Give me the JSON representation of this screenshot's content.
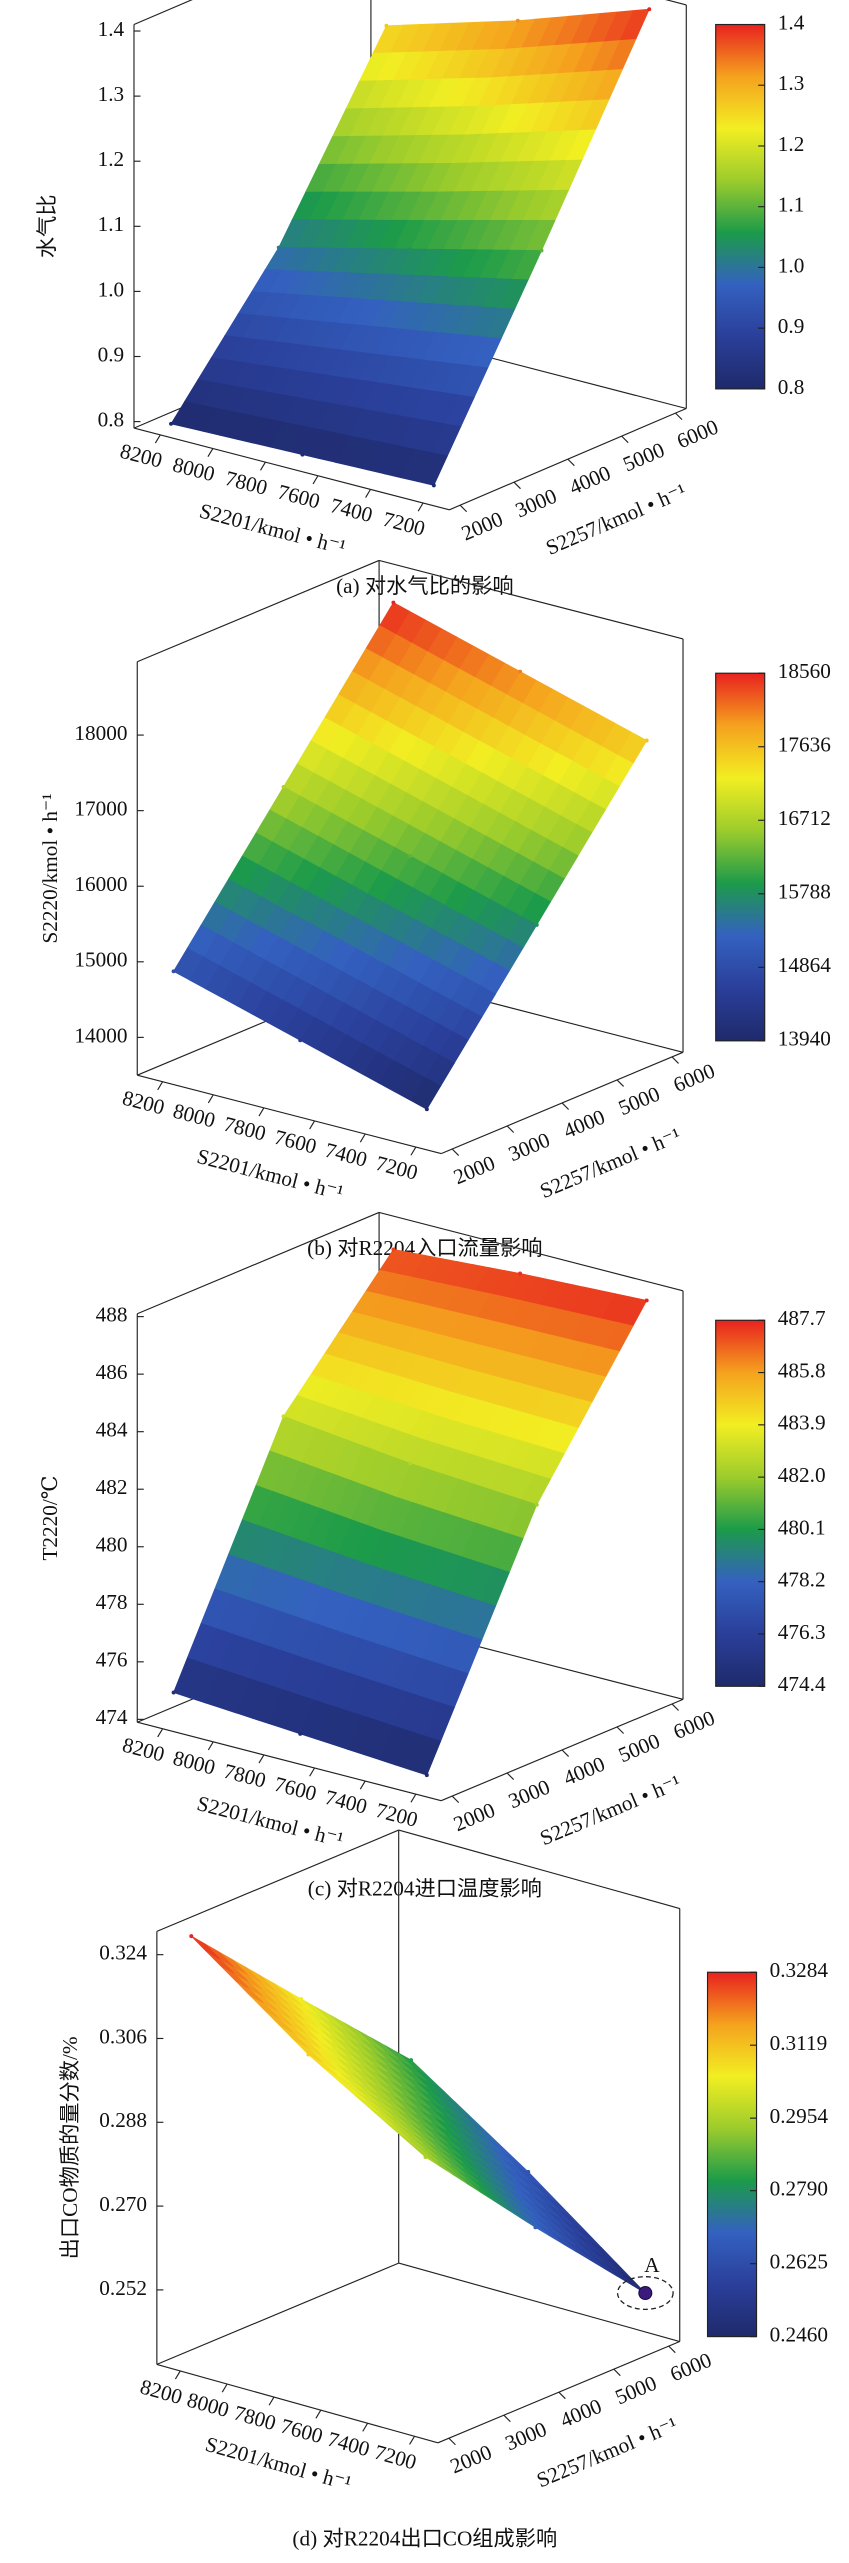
{
  "chart_data": [
    {
      "type": "surface",
      "caption": "(a) 对水气比的影响",
      "xlabel": "S2201/kmol • h⁻¹",
      "ylabel": "S2257/kmol • h⁻¹",
      "zlabel": "水气比",
      "x": [
        7200,
        7700,
        8200
      ],
      "y": [
        2000,
        4000,
        6000
      ],
      "z": [
        [
          0.81,
          0.805,
          0.8
        ],
        [
          1.1,
          1.05,
          1.0
        ],
        [
          1.4,
          1.33,
          1.27
        ]
      ],
      "xlim": [
        7100,
        8300
      ],
      "xticks": [
        8200,
        8000,
        7800,
        7600,
        7400,
        7200
      ],
      "ylim": [
        1800,
        6200
      ],
      "yticks": [
        2000,
        3000,
        4000,
        5000,
        6000
      ],
      "zlim": [
        0.79,
        1.41
      ],
      "zticks": [
        0.8,
        0.9,
        {
          "value": 1,
          "label": "1.0"
        },
        1.1,
        1.2,
        1.3,
        1.4
      ],
      "clim": [
        0.8,
        1.4
      ],
      "cticks": [
        0.8,
        0.9,
        {
          "value": 1,
          "label": "1.0"
        },
        1.1,
        1.2,
        1.3,
        1.4
      ],
      "colormap": [
        "#1f2a6b",
        "#2a3f9a",
        "#3461c0",
        "#1c9b4a",
        "#9ccc2c",
        "#f2ee22",
        "#f5a21e",
        "#e8221f"
      ]
    },
    {
      "type": "surface",
      "caption": "(b) 对R2204入口流量影响",
      "xlabel": "S2201/kmol • h⁻¹",
      "ylabel": "S2257/kmol • h⁻¹",
      "zlabel": "S2220/kmol • h⁻¹",
      "x": [
        7200,
        7700,
        8200
      ],
      "y": [
        2000,
        4000,
        6000
      ],
      "z": [
        [
          13940,
          14420,
          14900
        ],
        [
          15770,
          16250,
          16730
        ],
        [
          17600,
          18080,
          18560
        ]
      ],
      "xlim": [
        7100,
        8300
      ],
      "xticks": [
        8200,
        8000,
        7800,
        7600,
        7400,
        7200
      ],
      "ylim": [
        1800,
        6200
      ],
      "yticks": [
        2000,
        3000,
        4000,
        5000,
        6000
      ],
      "zlim": [
        13500,
        18970
      ],
      "zticks": [
        14000,
        15000,
        16000,
        17000,
        18000
      ],
      "clim": [
        13940,
        18560
      ],
      "cticks": [
        13940,
        14864,
        15788,
        16712,
        17636,
        18560
      ],
      "colormap": [
        "#1f2a6b",
        "#2a3f9a",
        "#3461c0",
        "#1c9b4a",
        "#9ccc2c",
        "#f2ee22",
        "#f5a21e",
        "#e8221f"
      ]
    },
    {
      "type": "surface",
      "caption": "(c) 对R2204进口温度影响",
      "xlabel": "S2201/kmol • h⁻¹",
      "ylabel": "S2257/kmol • h⁻¹",
      "zlabel": "T2220/℃",
      "x": [
        7200,
        7700,
        8200
      ],
      "y": [
        2000,
        4000,
        6000
      ],
      "z": [
        [
          474.4,
          474.7,
          475.0
        ],
        [
          482.2,
          482.5,
          483.0
        ],
        [
          487.7,
          487.5,
          487.2
        ]
      ],
      "xlim": [
        7100,
        8300
      ],
      "xticks": [
        8200,
        8000,
        7800,
        7600,
        7400,
        7200
      ],
      "ylim": [
        1800,
        6200
      ],
      "yticks": [
        2000,
        3000,
        4000,
        5000,
        6000
      ],
      "zlim": [
        473.9,
        488.1
      ],
      "zticks": [
        474,
        476,
        478,
        480,
        482,
        484,
        486,
        488
      ],
      "clim": [
        474.4,
        487.7
      ],
      "cticks": [
        474.4,
        476.3,
        478.2,
        480.1,
        {
          "value": 482,
          "label": "482.0"
        },
        483.9,
        485.8,
        487.7
      ],
      "colormap": [
        "#1f2a6b",
        "#2a3f9a",
        "#3461c0",
        "#1c9b4a",
        "#9ccc2c",
        "#f2ee22",
        "#f5a21e",
        "#e8221f"
      ]
    },
    {
      "type": "surface",
      "caption": "(d) 对R2204出口CO组成影响",
      "xlabel": "S2201/kmol • h⁻¹",
      "ylabel": "S2257/kmol • h⁻¹",
      "zlabel": "出口CO物质的量分数/%",
      "x": [
        7200,
        7700,
        8200
      ],
      "y": [
        2000,
        4000,
        6000
      ],
      "z": [
        [
          0.295,
          0.31,
          0.3284
        ],
        [
          0.27,
          0.287,
          0.305
        ],
        [
          0.246,
          0.265,
          0.282
        ]
      ],
      "xlim": [
        7100,
        8300
      ],
      "xticks": [
        8200,
        8000,
        7800,
        7600,
        7400,
        7200
      ],
      "ylim": [
        1800,
        6200
      ],
      "yticks": [
        2000,
        3000,
        4000,
        5000,
        6000
      ],
      "zlim": [
        0.236,
        0.329
      ],
      "zticks": [
        0.252,
        {
          "value": 0.27,
          "label": "0.270"
        },
        0.288,
        0.306,
        0.324
      ],
      "clim": [
        0.246,
        0.3284
      ],
      "cticks": [
        {
          "value": 0.246,
          "label": "0.2460"
        },
        0.2625,
        {
          "value": 0.279,
          "label": "0.2790"
        },
        0.2954,
        0.3119,
        0.3284
      ],
      "colormap": [
        "#1f2a6b",
        "#2a3f9a",
        "#3461c0",
        "#1c9b4a",
        "#9ccc2c",
        "#f2ee22",
        "#f5a21e",
        "#e8221f"
      ],
      "annotation": {
        "text": "A",
        "x": 7200,
        "y": 6000,
        "z": 0.246
      }
    }
  ]
}
